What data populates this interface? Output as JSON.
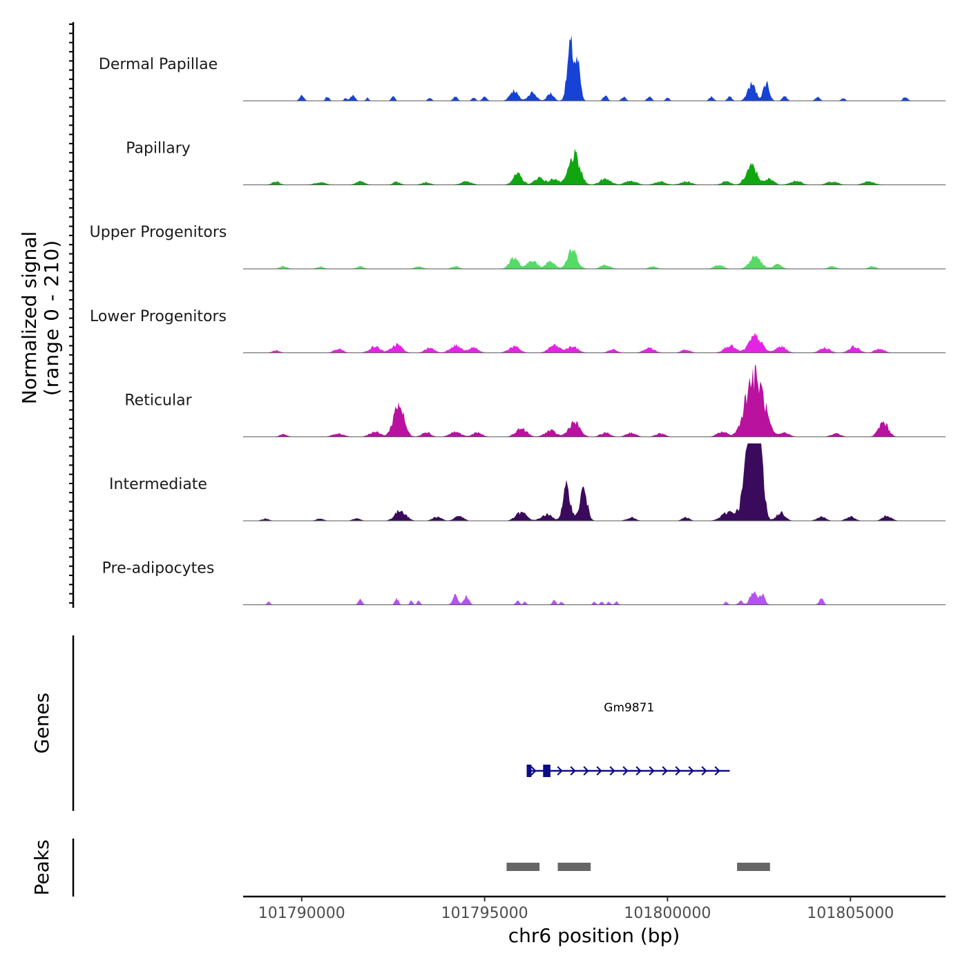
{
  "chart_data": {
    "type": "area",
    "title": "",
    "ylabel": "Normalized signal",
    "ylabel_range": "(range 0 - 210)",
    "xlabel": "chr6 position (bp)",
    "xlim": [
      101788400,
      101807600
    ],
    "ylim": [
      0,
      210
    ],
    "x_ticks": [
      {
        "value": 101790000,
        "label": "101790000"
      },
      {
        "value": 101795000,
        "label": "101795000"
      },
      {
        "value": 101800000,
        "label": "101800000"
      },
      {
        "value": 101805000,
        "label": "101805000"
      }
    ],
    "series": [
      {
        "name": "Dermal Papillae",
        "color": "#1742d6",
        "peaks": [
          [
            101790000,
            12,
            60
          ],
          [
            101790700,
            10,
            50
          ],
          [
            101791200,
            8,
            40
          ],
          [
            101791400,
            14,
            60
          ],
          [
            101791800,
            8,
            40
          ],
          [
            101792500,
            10,
            50
          ],
          [
            101793500,
            8,
            50
          ],
          [
            101794200,
            10,
            60
          ],
          [
            101794700,
            8,
            50
          ],
          [
            101795000,
            10,
            60
          ],
          [
            101795800,
            25,
            110
          ],
          [
            101796300,
            20,
            110
          ],
          [
            101796800,
            18,
            90
          ],
          [
            101797350,
            130,
            90
          ],
          [
            101797550,
            80,
            70
          ],
          [
            101798300,
            12,
            60
          ],
          [
            101798800,
            10,
            60
          ],
          [
            101799500,
            10,
            60
          ],
          [
            101800000,
            8,
            50
          ],
          [
            101801200,
            10,
            60
          ],
          [
            101801700,
            10,
            60
          ],
          [
            101802300,
            40,
            110
          ],
          [
            101802700,
            45,
            80
          ],
          [
            101803200,
            12,
            60
          ],
          [
            101804100,
            10,
            60
          ],
          [
            101804800,
            8,
            50
          ],
          [
            101806500,
            10,
            60
          ]
        ]
      },
      {
        "name": "Papillary",
        "color": "#11a611",
        "peaks": [
          [
            101789300,
            8,
            100
          ],
          [
            101790500,
            6,
            150
          ],
          [
            101791600,
            8,
            120
          ],
          [
            101792600,
            7,
            100
          ],
          [
            101793400,
            6,
            120
          ],
          [
            101794500,
            8,
            150
          ],
          [
            101795900,
            25,
            130
          ],
          [
            101796500,
            18,
            130
          ],
          [
            101796900,
            15,
            110
          ],
          [
            101797450,
            70,
            150
          ],
          [
            101798300,
            15,
            150
          ],
          [
            101799000,
            10,
            150
          ],
          [
            101799800,
            8,
            150
          ],
          [
            101800500,
            8,
            150
          ],
          [
            101801600,
            8,
            120
          ],
          [
            101802300,
            45,
            150
          ],
          [
            101802800,
            15,
            110
          ],
          [
            101803500,
            10,
            150
          ],
          [
            101804500,
            8,
            150
          ],
          [
            101805500,
            8,
            150
          ]
        ]
      },
      {
        "name": "Upper Progenitors",
        "color": "#55db66",
        "peaks": [
          [
            101789500,
            6,
            100
          ],
          [
            101790500,
            5,
            100
          ],
          [
            101791600,
            6,
            100
          ],
          [
            101793200,
            6,
            100
          ],
          [
            101794200,
            6,
            100
          ],
          [
            101795800,
            28,
            120
          ],
          [
            101796300,
            22,
            120
          ],
          [
            101796800,
            20,
            120
          ],
          [
            101797400,
            45,
            130
          ],
          [
            101798300,
            10,
            120
          ],
          [
            101799600,
            6,
            100
          ],
          [
            101801400,
            10,
            120
          ],
          [
            101802400,
            30,
            150
          ],
          [
            101803000,
            10,
            120
          ],
          [
            101804500,
            6,
            100
          ],
          [
            101805600,
            6,
            100
          ]
        ]
      },
      {
        "name": "Lower Progenitors",
        "color": "#e424e4",
        "peaks": [
          [
            101789300,
            6,
            100
          ],
          [
            101791000,
            10,
            120
          ],
          [
            101792000,
            15,
            150
          ],
          [
            101792600,
            20,
            140
          ],
          [
            101793500,
            12,
            130
          ],
          [
            101794200,
            18,
            150
          ],
          [
            101794700,
            12,
            130
          ],
          [
            101795800,
            15,
            150
          ],
          [
            101796900,
            18,
            150
          ],
          [
            101797400,
            15,
            150
          ],
          [
            101798500,
            8,
            120
          ],
          [
            101799500,
            12,
            140
          ],
          [
            101800500,
            8,
            120
          ],
          [
            101801700,
            18,
            150
          ],
          [
            101802400,
            40,
            170
          ],
          [
            101803100,
            15,
            140
          ],
          [
            101804300,
            12,
            140
          ],
          [
            101805100,
            15,
            140
          ],
          [
            101805800,
            10,
            130
          ]
        ]
      },
      {
        "name": "Reticular",
        "color": "#b8129f",
        "peaks": [
          [
            101789500,
            6,
            100
          ],
          [
            101791000,
            8,
            150
          ],
          [
            101792000,
            12,
            150
          ],
          [
            101792650,
            80,
            140
          ],
          [
            101793400,
            12,
            120
          ],
          [
            101794200,
            12,
            150
          ],
          [
            101794800,
            10,
            130
          ],
          [
            101796000,
            20,
            150
          ],
          [
            101796800,
            15,
            150
          ],
          [
            101797450,
            35,
            150
          ],
          [
            101798300,
            10,
            130
          ],
          [
            101799000,
            10,
            130
          ],
          [
            101799800,
            8,
            130
          ],
          [
            101801500,
            12,
            140
          ],
          [
            101802300,
            130,
            200
          ],
          [
            101802600,
            60,
            160
          ],
          [
            101803200,
            10,
            130
          ],
          [
            101804600,
            8,
            130
          ],
          [
            101805900,
            35,
            130
          ]
        ]
      },
      {
        "name": "Intermediate",
        "color": "#3a0b5c",
        "peaks": [
          [
            101789000,
            5,
            100
          ],
          [
            101790500,
            5,
            100
          ],
          [
            101791500,
            6,
            100
          ],
          [
            101792700,
            25,
            150
          ],
          [
            101793700,
            10,
            120
          ],
          [
            101794300,
            12,
            120
          ],
          [
            101796000,
            20,
            150
          ],
          [
            101796700,
            15,
            150
          ],
          [
            101797250,
            80,
            100
          ],
          [
            101797700,
            75,
            100
          ],
          [
            101799000,
            8,
            120
          ],
          [
            101800500,
            8,
            100
          ],
          [
            101801700,
            22,
            200
          ],
          [
            101802300,
            260,
            160
          ],
          [
            101802500,
            200,
            100
          ],
          [
            101803100,
            20,
            120
          ],
          [
            101804200,
            10,
            120
          ],
          [
            101805000,
            10,
            120
          ],
          [
            101806000,
            12,
            120
          ]
        ]
      },
      {
        "name": "Pre-adipocytes",
        "color": "#b552f0",
        "peaks": [
          [
            101789100,
            8,
            40
          ],
          [
            101791600,
            15,
            50
          ],
          [
            101792600,
            15,
            50
          ],
          [
            101793000,
            10,
            40
          ],
          [
            101793200,
            10,
            40
          ],
          [
            101794200,
            22,
            70
          ],
          [
            101794500,
            20,
            70
          ],
          [
            101795900,
            10,
            50
          ],
          [
            101796100,
            8,
            40
          ],
          [
            101796900,
            10,
            50
          ],
          [
            101797100,
            8,
            40
          ],
          [
            101798000,
            8,
            40
          ],
          [
            101798200,
            8,
            40
          ],
          [
            101798400,
            8,
            40
          ],
          [
            101798600,
            8,
            40
          ],
          [
            101801600,
            8,
            40
          ],
          [
            101802000,
            10,
            60
          ],
          [
            101802350,
            35,
            90
          ],
          [
            101802600,
            25,
            70
          ],
          [
            101804200,
            15,
            60
          ]
        ]
      }
    ],
    "genes_label": "Genes",
    "genes": [
      {
        "name": "Gm9871",
        "start": 101796200,
        "end": 101801700,
        "strand": "+",
        "exons": [
          [
            101796150,
            101796280
          ],
          [
            101796600,
            101796800
          ]
        ]
      }
    ],
    "peaks_label": "Peaks",
    "peaks": [
      [
        101795600,
        101796500
      ],
      [
        101797000,
        101797900
      ],
      [
        101801900,
        101802800
      ]
    ]
  }
}
